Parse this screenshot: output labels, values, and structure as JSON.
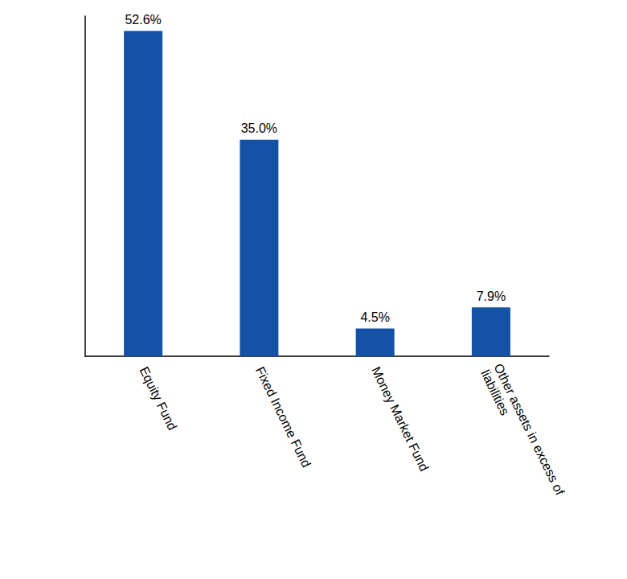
{
  "chart_data": {
    "type": "bar",
    "categories": [
      "Equity Fund",
      "Fixed Income Fund",
      "Money Market Fund",
      "Other assets in excess of liabilities"
    ],
    "values": [
      52.6,
      35.0,
      4.5,
      7.9
    ],
    "value_labels": [
      "52.6%",
      "35.0%",
      "4.5%",
      "7.9%"
    ],
    "color": "#1352a5",
    "ylim": [
      0,
      55
    ],
    "grid": false,
    "data_labels": true,
    "tick_labels": "x"
  }
}
